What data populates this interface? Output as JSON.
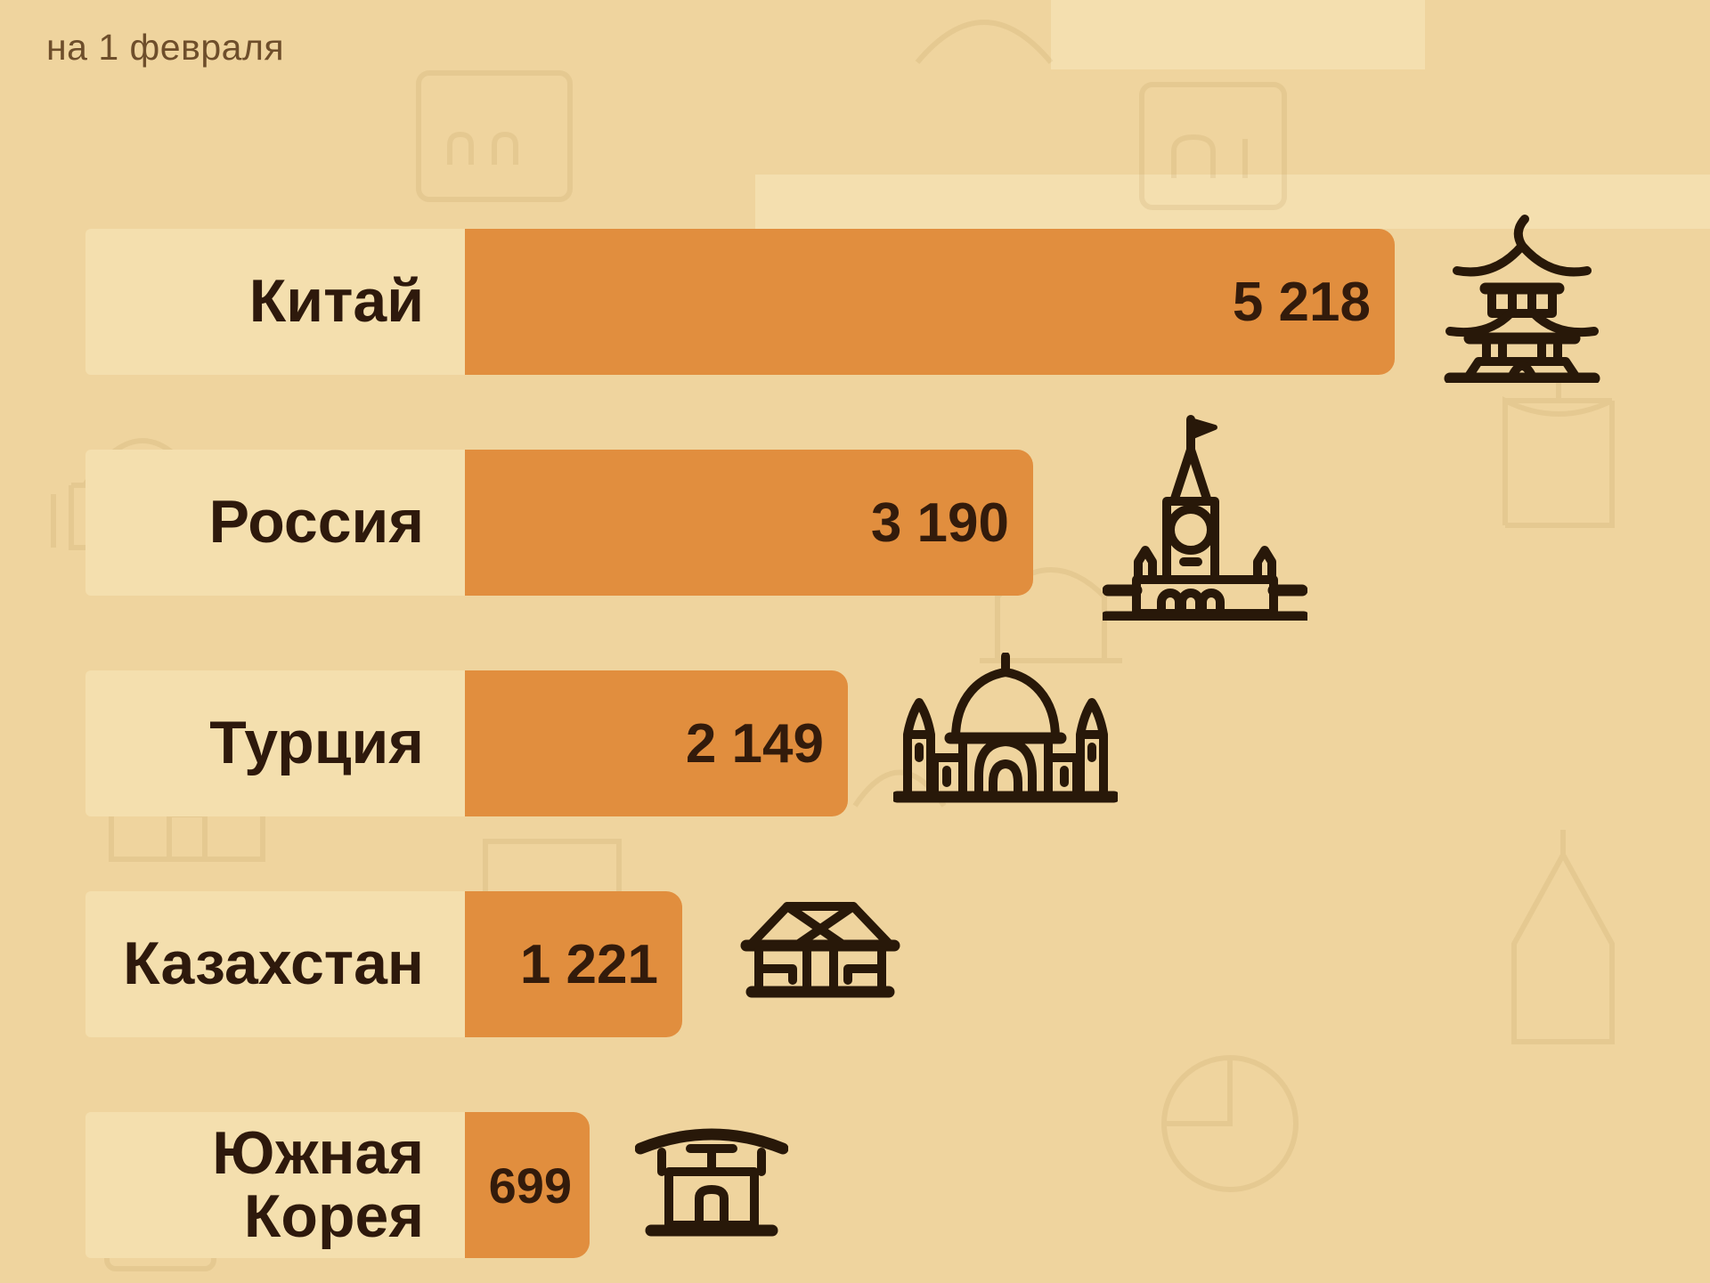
{
  "subtitle": "на 1 февраля",
  "chart_data": {
    "type": "bar",
    "orientation": "horizontal",
    "subtitle": "на 1 февраля",
    "categories": [
      "Китай",
      "Россия",
      "Турция",
      "Казахстан",
      "Южная Корея"
    ],
    "values": [
      5218,
      3190,
      2149,
      1221,
      699
    ],
    "value_labels": [
      "5 218",
      "3 190",
      "2 149",
      "1 221",
      "699"
    ],
    "xlim": [
      0,
      5600
    ],
    "grid": false,
    "legend": false,
    "bar_icons": [
      "pagoda-icon",
      "kremlin-tower-icon",
      "mosque-icon",
      "yurt-icon",
      "hanok-icon"
    ]
  },
  "rows": [
    {
      "label": "Китай",
      "value": 5218,
      "value_label": "5 218",
      "icon": "pagoda-icon"
    },
    {
      "label": "Россия",
      "value": 3190,
      "value_label": "3 190",
      "icon": "kremlin-tower-icon"
    },
    {
      "label": "Турция",
      "value": 2149,
      "value_label": "2 149",
      "icon": "mosque-icon"
    },
    {
      "label": "Казахстан",
      "value": 1221,
      "value_label": "1 221",
      "icon": "yurt-icon"
    },
    {
      "label": "Южная Корея",
      "value": 699,
      "value_label": "699",
      "icon": "hanok-icon"
    }
  ],
  "colors": {
    "background": "#efd49e",
    "label_band": "#f4dfae",
    "bar": "#e18e3e",
    "label_text": "#2e190c",
    "value_text": "#331b0b",
    "subtitle_text": "#6e4e2b",
    "icon_stroke": "#281809"
  }
}
